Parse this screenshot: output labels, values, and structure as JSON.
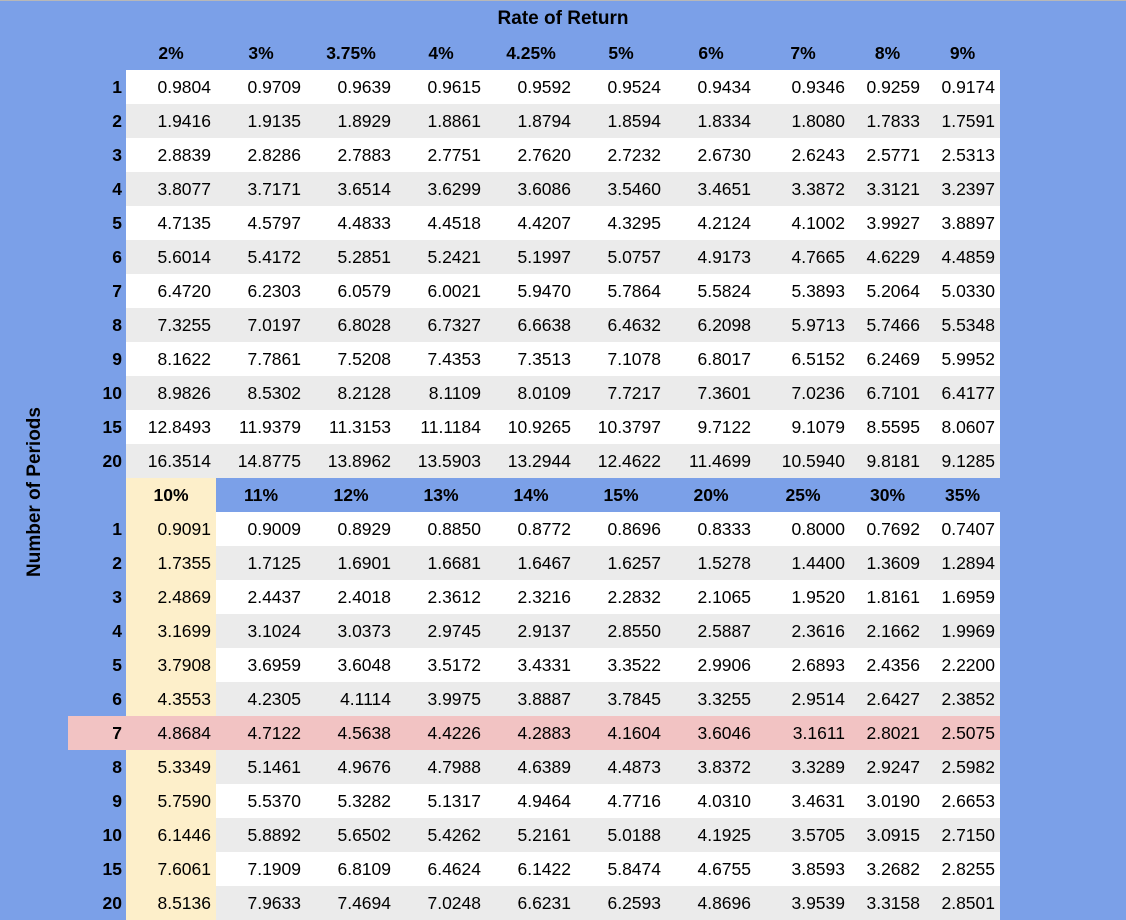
{
  "title": "Rate of Return",
  "y_label": "Number of Periods",
  "colors": {
    "background": "#7ba0e8",
    "stripe": "#ebebeb",
    "highlight_column": "#fdefca",
    "highlight_row": "#f2c3c3"
  },
  "highlight": {
    "column_rate": "10%",
    "row_period": "7"
  },
  "sections": [
    {
      "rates": [
        "2%",
        "3%",
        "3.75%",
        "4%",
        "4.25%",
        "5%",
        "6%",
        "7%",
        "8%",
        "9%"
      ],
      "rows": [
        {
          "n": "1",
          "v": [
            "0.9804",
            "0.9709",
            "0.9639",
            "0.9615",
            "0.9592",
            "0.9524",
            "0.9434",
            "0.9346",
            "0.9259",
            "0.9174"
          ]
        },
        {
          "n": "2",
          "v": [
            "1.9416",
            "1.9135",
            "1.8929",
            "1.8861",
            "1.8794",
            "1.8594",
            "1.8334",
            "1.8080",
            "1.7833",
            "1.7591"
          ]
        },
        {
          "n": "3",
          "v": [
            "2.8839",
            "2.8286",
            "2.7883",
            "2.7751",
            "2.7620",
            "2.7232",
            "2.6730",
            "2.6243",
            "2.5771",
            "2.5313"
          ]
        },
        {
          "n": "4",
          "v": [
            "3.8077",
            "3.7171",
            "3.6514",
            "3.6299",
            "3.6086",
            "3.5460",
            "3.4651",
            "3.3872",
            "3.3121",
            "3.2397"
          ]
        },
        {
          "n": "5",
          "v": [
            "4.7135",
            "4.5797",
            "4.4833",
            "4.4518",
            "4.4207",
            "4.3295",
            "4.2124",
            "4.1002",
            "3.9927",
            "3.8897"
          ]
        },
        {
          "n": "6",
          "v": [
            "5.6014",
            "5.4172",
            "5.2851",
            "5.2421",
            "5.1997",
            "5.0757",
            "4.9173",
            "4.7665",
            "4.6229",
            "4.4859"
          ]
        },
        {
          "n": "7",
          "v": [
            "6.4720",
            "6.2303",
            "6.0579",
            "6.0021",
            "5.9470",
            "5.7864",
            "5.5824",
            "5.3893",
            "5.2064",
            "5.0330"
          ]
        },
        {
          "n": "8",
          "v": [
            "7.3255",
            "7.0197",
            "6.8028",
            "6.7327",
            "6.6638",
            "6.4632",
            "6.2098",
            "5.9713",
            "5.7466",
            "5.5348"
          ]
        },
        {
          "n": "9",
          "v": [
            "8.1622",
            "7.7861",
            "7.5208",
            "7.4353",
            "7.3513",
            "7.1078",
            "6.8017",
            "6.5152",
            "6.2469",
            "5.9952"
          ]
        },
        {
          "n": "10",
          "v": [
            "8.9826",
            "8.5302",
            "8.2128",
            "8.1109",
            "8.0109",
            "7.7217",
            "7.3601",
            "7.0236",
            "6.7101",
            "6.4177"
          ]
        },
        {
          "n": "15",
          "v": [
            "12.8493",
            "11.9379",
            "11.3153",
            "11.1184",
            "10.9265",
            "10.3797",
            "9.7122",
            "9.1079",
            "8.5595",
            "8.0607"
          ]
        },
        {
          "n": "20",
          "v": [
            "16.3514",
            "14.8775",
            "13.8962",
            "13.5903",
            "13.2944",
            "12.4622",
            "11.4699",
            "10.5940",
            "9.8181",
            "9.1285"
          ]
        }
      ]
    },
    {
      "rates": [
        "10%",
        "11%",
        "12%",
        "13%",
        "14%",
        "15%",
        "20%",
        "25%",
        "30%",
        "35%"
      ],
      "rows": [
        {
          "n": "1",
          "v": [
            "0.9091",
            "0.9009",
            "0.8929",
            "0.8850",
            "0.8772",
            "0.8696",
            "0.8333",
            "0.8000",
            "0.7692",
            "0.7407"
          ]
        },
        {
          "n": "2",
          "v": [
            "1.7355",
            "1.7125",
            "1.6901",
            "1.6681",
            "1.6467",
            "1.6257",
            "1.5278",
            "1.4400",
            "1.3609",
            "1.2894"
          ]
        },
        {
          "n": "3",
          "v": [
            "2.4869",
            "2.4437",
            "2.4018",
            "2.3612",
            "2.3216",
            "2.2832",
            "2.1065",
            "1.9520",
            "1.8161",
            "1.6959"
          ]
        },
        {
          "n": "4",
          "v": [
            "3.1699",
            "3.1024",
            "3.0373",
            "2.9745",
            "2.9137",
            "2.8550",
            "2.5887",
            "2.3616",
            "2.1662",
            "1.9969"
          ]
        },
        {
          "n": "5",
          "v": [
            "3.7908",
            "3.6959",
            "3.6048",
            "3.5172",
            "3.4331",
            "3.3522",
            "2.9906",
            "2.6893",
            "2.4356",
            "2.2200"
          ]
        },
        {
          "n": "6",
          "v": [
            "4.3553",
            "4.2305",
            "4.1114",
            "3.9975",
            "3.8887",
            "3.7845",
            "3.3255",
            "2.9514",
            "2.6427",
            "2.3852"
          ]
        },
        {
          "n": "7",
          "v": [
            "4.8684",
            "4.7122",
            "4.5638",
            "4.4226",
            "4.2883",
            "4.1604",
            "3.6046",
            "3.1611",
            "2.8021",
            "2.5075"
          ]
        },
        {
          "n": "8",
          "v": [
            "5.3349",
            "5.1461",
            "4.9676",
            "4.7988",
            "4.6389",
            "4.4873",
            "3.8372",
            "3.3289",
            "2.9247",
            "2.5982"
          ]
        },
        {
          "n": "9",
          "v": [
            "5.7590",
            "5.5370",
            "5.3282",
            "5.1317",
            "4.9464",
            "4.7716",
            "4.0310",
            "3.4631",
            "3.0190",
            "2.6653"
          ]
        },
        {
          "n": "10",
          "v": [
            "6.1446",
            "5.8892",
            "5.6502",
            "5.4262",
            "5.2161",
            "5.0188",
            "4.1925",
            "3.5705",
            "3.0915",
            "2.7150"
          ]
        },
        {
          "n": "15",
          "v": [
            "7.6061",
            "7.1909",
            "6.8109",
            "6.4624",
            "6.1422",
            "5.8474",
            "4.6755",
            "3.8593",
            "3.2682",
            "2.8255"
          ]
        },
        {
          "n": "20",
          "v": [
            "8.5136",
            "7.9633",
            "7.4694",
            "7.0248",
            "6.6231",
            "6.2593",
            "4.8696",
            "3.9539",
            "3.3158",
            "2.8501"
          ]
        }
      ]
    }
  ]
}
